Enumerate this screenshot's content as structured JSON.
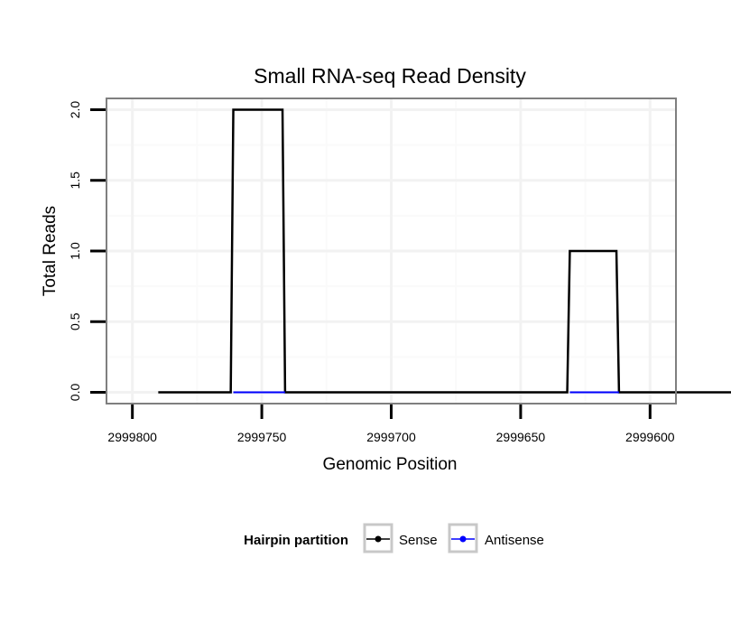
{
  "chart_data": {
    "type": "line",
    "title": "Small RNA-seq Read Density",
    "xlabel": "Genomic Position",
    "ylabel": "Total Reads",
    "xlim": [
      2999810,
      2999590
    ],
    "ylim": [
      -0.08,
      2.08
    ],
    "x_reversed": true,
    "x_ticks": [
      2999800,
      2999750,
      2999700,
      2999650,
      2999600
    ],
    "x_tick_labels": [
      "2999800",
      "2999750",
      "2999700",
      "2999650",
      "2999600"
    ],
    "x_minor_grid": [
      2999775,
      2999725,
      2999675,
      2999625
    ],
    "y_ticks": [
      0,
      0.5,
      1,
      1.5,
      2
    ],
    "y_tick_labels": [
      "0.0",
      "0.5",
      "1.0",
      "1.5",
      "2.0"
    ],
    "y_minor_grid": [
      0.25,
      0.75,
      1.25,
      1.75
    ],
    "grid": true,
    "legend": {
      "title": "Hairpin partition",
      "position": "bottom",
      "entries": [
        {
          "label": "Sense",
          "color": "#000000"
        },
        {
          "label": "Antisense",
          "color": "#0000ff"
        }
      ]
    },
    "series": [
      {
        "name": "Sense",
        "color": "#000000",
        "x": [
          2999790,
          2999762,
          2999761,
          2999742,
          2999741,
          2999632,
          2999631,
          2999613,
          2999612,
          2999563
        ],
        "y": [
          0,
          0,
          2,
          2,
          0,
          0,
          1,
          1,
          0,
          0
        ]
      },
      {
        "name": "Antisense",
        "color": "#0000ff",
        "x": [
          2999761,
          2999741,
          2999631,
          2999612
        ],
        "y": [
          0,
          0,
          0,
          0
        ],
        "segments": [
          [
            0,
            1
          ],
          [
            2,
            3
          ]
        ]
      }
    ]
  }
}
